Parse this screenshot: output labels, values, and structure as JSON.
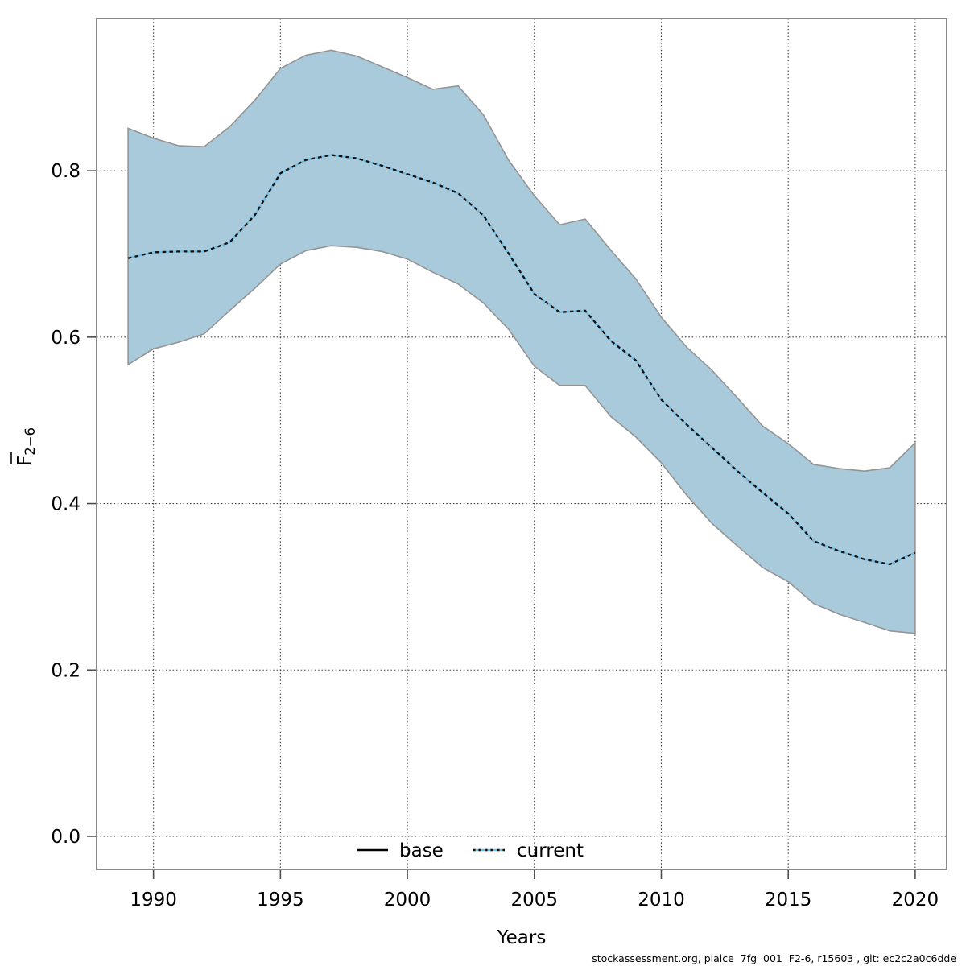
{
  "chart_data": {
    "type": "area",
    "title": "",
    "xlabel": "Years",
    "ylabel_letter": "F",
    "ylabel_overbar": true,
    "ylabel_subscript": "2−6",
    "x": [
      1989,
      1990,
      1991,
      1992,
      1993,
      1994,
      1995,
      1996,
      1997,
      1998,
      1999,
      2000,
      2001,
      2002,
      2003,
      2004,
      2005,
      2006,
      2007,
      2008,
      2009,
      2010,
      2011,
      2012,
      2013,
      2014,
      2015,
      2016,
      2017,
      2018,
      2019,
      2020
    ],
    "series": [
      {
        "name": "current",
        "values": [
          0.695,
          0.702,
          0.703,
          0.703,
          0.714,
          0.747,
          0.797,
          0.813,
          0.819,
          0.815,
          0.806,
          0.796,
          0.786,
          0.773,
          0.746,
          0.7,
          0.652,
          0.63,
          0.632,
          0.596,
          0.572,
          0.525,
          0.495,
          0.467,
          0.439,
          0.413,
          0.388,
          0.355,
          0.343,
          0.333,
          0.327,
          0.341
        ]
      }
    ],
    "band": {
      "name": "confidence-interval",
      "upper": [
        0.851,
        0.839,
        0.83,
        0.829,
        0.853,
        0.885,
        0.923,
        0.939,
        0.945,
        0.938,
        0.925,
        0.912,
        0.898,
        0.902,
        0.867,
        0.812,
        0.77,
        0.735,
        0.742,
        0.705,
        0.67,
        0.624,
        0.588,
        0.56,
        0.527,
        0.493,
        0.472,
        0.447,
        0.442,
        0.439,
        0.443,
        0.473
      ],
      "lower": [
        0.567,
        0.586,
        0.594,
        0.604,
        0.632,
        0.659,
        0.688,
        0.704,
        0.71,
        0.708,
        0.703,
        0.694,
        0.678,
        0.664,
        0.641,
        0.609,
        0.565,
        0.542,
        0.542,
        0.505,
        0.48,
        0.449,
        0.41,
        0.376,
        0.349,
        0.323,
        0.306,
        0.28,
        0.267,
        0.257,
        0.247,
        0.244
      ]
    },
    "xticks": [
      1990,
      1995,
      2000,
      2005,
      2010,
      2015,
      2020
    ],
    "xtick_labels": [
      "1990",
      "1995",
      "2000",
      "2005",
      "2010",
      "2015",
      "2020"
    ],
    "yticks": [
      0.0,
      0.2,
      0.4,
      0.6,
      0.8
    ],
    "ytick_labels": [
      "0.0",
      "0.2",
      "0.4",
      "0.6",
      "0.8"
    ],
    "xlim": [
      1987.76,
      2021.24
    ],
    "ylim": [
      -0.0397,
      0.983
    ],
    "grid": true,
    "legend_position": "bottom-center-inside",
    "legend": [
      {
        "label": "base",
        "style": "solid",
        "color": "#000000"
      },
      {
        "label": "current",
        "style": "dotted",
        "color": "#6FBCE4"
      }
    ],
    "colors": {
      "band_fill": "#A9CADB",
      "band_edge": "#949494",
      "line_underlay_blue": "#6FBCE4",
      "line_dash_black": "#101010",
      "grid_color": "#3C3C3C",
      "box_color": "#8A8A8A",
      "tick_color": "#4D4D4D"
    }
  },
  "footer": {
    "credit": "stockassessment.org, plaice  7fg  001  F2-6, r15603 , git: ec2c2a0c6dde"
  }
}
